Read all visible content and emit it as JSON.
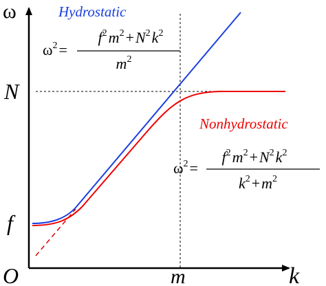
{
  "axes": {
    "y_label": "ω",
    "x_label": "k",
    "origin": "O",
    "N": "N",
    "f": "f",
    "m": "m"
  },
  "hydrostatic": {
    "title": "Hydrostatic",
    "formula": {
      "lhs": [
        {
          "t": "ω",
          "s": "2"
        },
        {
          "t": "="
        }
      ],
      "numerator": [
        {
          "t": "f",
          "s": "2"
        },
        {
          "t": "m",
          "s": "2"
        },
        {
          "t": "+"
        },
        {
          "t": "N",
          "s": "2"
        },
        {
          "t": "k",
          "s": "2"
        }
      ],
      "denominator": [
        {
          "t": "m",
          "s": "2"
        }
      ]
    }
  },
  "nonhydrostatic": {
    "title": "Nonhydrostatic",
    "formula": {
      "lhs": [
        {
          "t": "ω",
          "s": "2"
        },
        {
          "t": "="
        }
      ],
      "numerator": [
        {
          "t": "f",
          "s": "2"
        },
        {
          "t": "m",
          "s": "2"
        },
        {
          "t": "+"
        },
        {
          "t": "N",
          "s": "2"
        },
        {
          "t": "k",
          "s": "2"
        }
      ],
      "denominator": [
        {
          "t": "k",
          "s": "2"
        },
        {
          "t": "+"
        },
        {
          "t": "m",
          "s": "2"
        }
      ]
    }
  }
}
